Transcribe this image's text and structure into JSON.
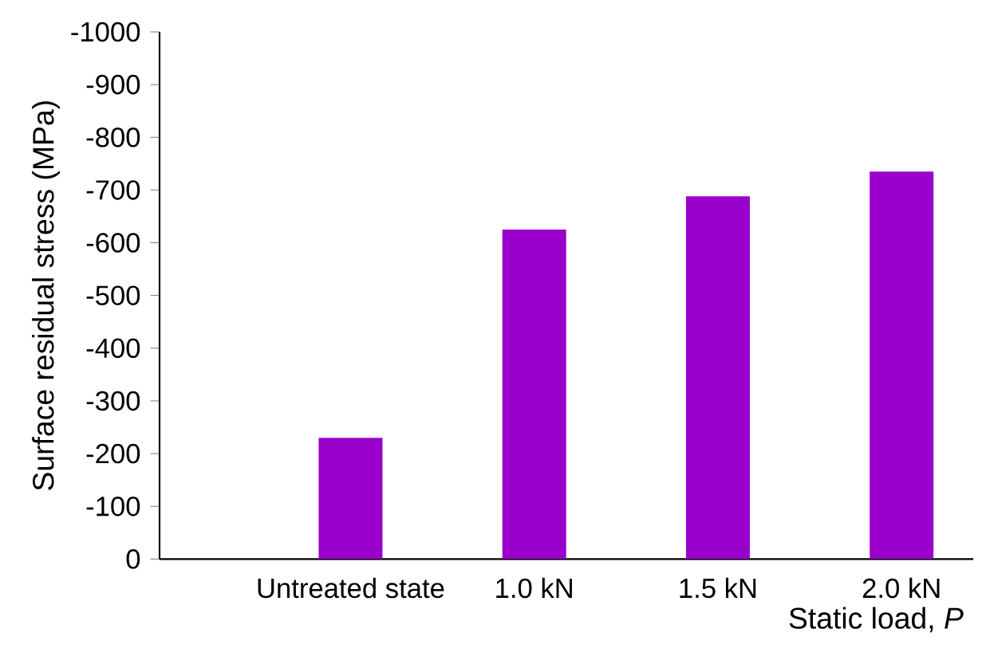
{
  "chart_data": {
    "type": "bar",
    "xlabel": "Static load, *P*",
    "ylabel": "Surface residual stress (MPa)",
    "categories": [
      "Untreated state",
      "1.0 kN",
      "1.5 kN",
      "2.0 kN"
    ],
    "values": [
      -230,
      -625,
      -688,
      -735
    ],
    "color": "#9900cc",
    "ylim": [
      0,
      -1000
    ],
    "yticks": [
      -1000,
      -900,
      -800,
      -700,
      -600,
      -500,
      -400,
      -300,
      -200,
      -100,
      0
    ],
    "grid": false
  }
}
